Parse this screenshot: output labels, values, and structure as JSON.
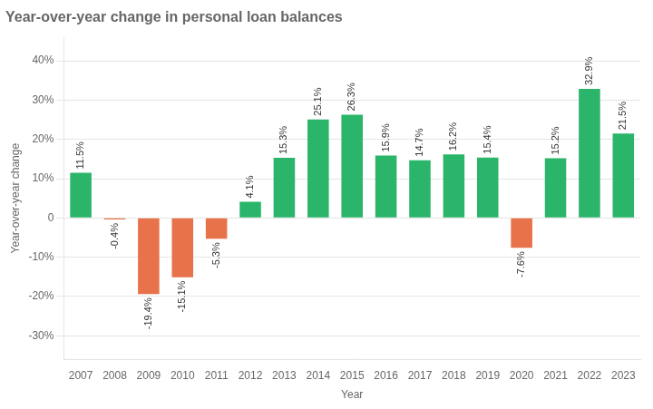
{
  "chart_data": {
    "type": "bar",
    "title": "Year-over-year change in personal loan balances",
    "xlabel": "Year",
    "ylabel": "Year-over-year change",
    "categories": [
      "2007",
      "2008",
      "2009",
      "2010",
      "2011",
      "2012",
      "2013",
      "2014",
      "2015",
      "2016",
      "2017",
      "2018",
      "2019",
      "2020",
      "2021",
      "2022",
      "2023"
    ],
    "values": [
      11.5,
      -0.4,
      -19.4,
      -15.1,
      -5.3,
      4.1,
      15.3,
      25.1,
      26.3,
      15.9,
      14.7,
      16.2,
      15.4,
      -7.6,
      15.2,
      32.9,
      21.5
    ],
    "value_labels": [
      "11.5%",
      "-0.4%",
      "-19.4%",
      "-15.1%",
      "-5.3%",
      "4.1%",
      "15.3%",
      "25.1%",
      "26.3%",
      "15.9%",
      "14.7%",
      "16.2%",
      "15.4%",
      "-7.6%",
      "15.2%",
      "32.9%",
      "21.5%"
    ],
    "data_labels": true,
    "colors": [
      "#2ab56a",
      "#e8724a",
      "#e8724a",
      "#e8724a",
      "#e8724a",
      "#2ab56a",
      "#2ab56a",
      "#2ab56a",
      "#2ab56a",
      "#2ab56a",
      "#2ab56a",
      "#2ab56a",
      "#2ab56a",
      "#e8724a",
      "#2ab56a",
      "#2ab56a",
      "#2ab56a"
    ],
    "ylim": [
      -36,
      46
    ],
    "yticks": [
      {
        "value": -30,
        "label": "-30%"
      },
      {
        "value": -20,
        "label": "-20%"
      },
      {
        "value": -10,
        "label": "-10%"
      },
      0,
      {
        "value": 10,
        "label": "10%"
      },
      {
        "value": 20,
        "label": "20%"
      },
      {
        "value": 30,
        "label": "30%"
      },
      {
        "value": 40,
        "label": "40%"
      }
    ],
    "grid": true
  }
}
